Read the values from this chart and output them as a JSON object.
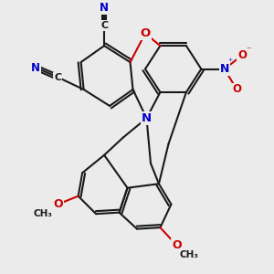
{
  "bg_color": "#ebebeb",
  "bond_color": "#1a1a1a",
  "bond_width": 1.5,
  "atom_colors": {
    "N": "#0000cc",
    "O": "#cc0000",
    "C": "#1a1a1a"
  }
}
